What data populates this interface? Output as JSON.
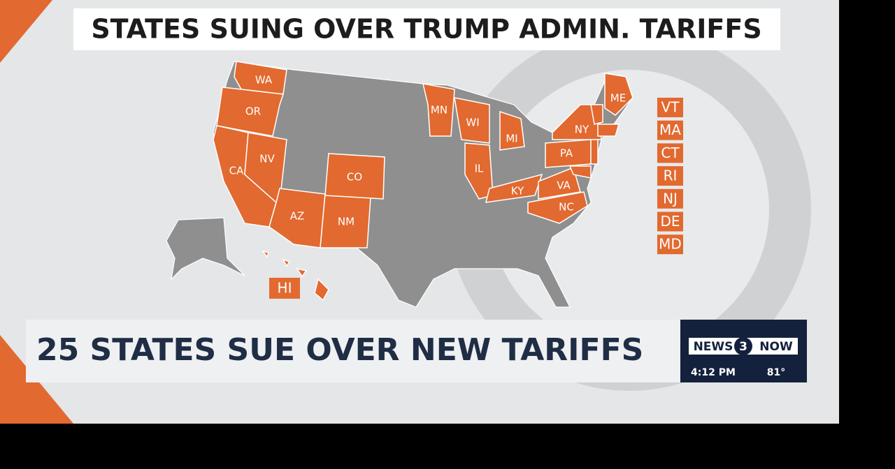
{
  "header": {
    "title": "STATES SUING OVER TRUMP ADMIN. TARIFFS"
  },
  "map": {
    "states": [
      "WA",
      "OR",
      "CA",
      "NV",
      "AZ",
      "NM",
      "CO",
      "MN",
      "WI",
      "MI",
      "IL",
      "KY",
      "VA",
      "NC",
      "PA",
      "NY",
      "ME"
    ],
    "hawaii": "HI",
    "side_labels": [
      "VT",
      "MA",
      "CT",
      "RI",
      "NJ",
      "DE",
      "MD"
    ]
  },
  "lower_third": {
    "headline": "25 STATES SUE OVER NEW TARIFFS",
    "logo": {
      "left": "NEWS",
      "number": "3",
      "right": "NOW"
    },
    "time": "4:12 PM",
    "temperature": "81°"
  }
}
